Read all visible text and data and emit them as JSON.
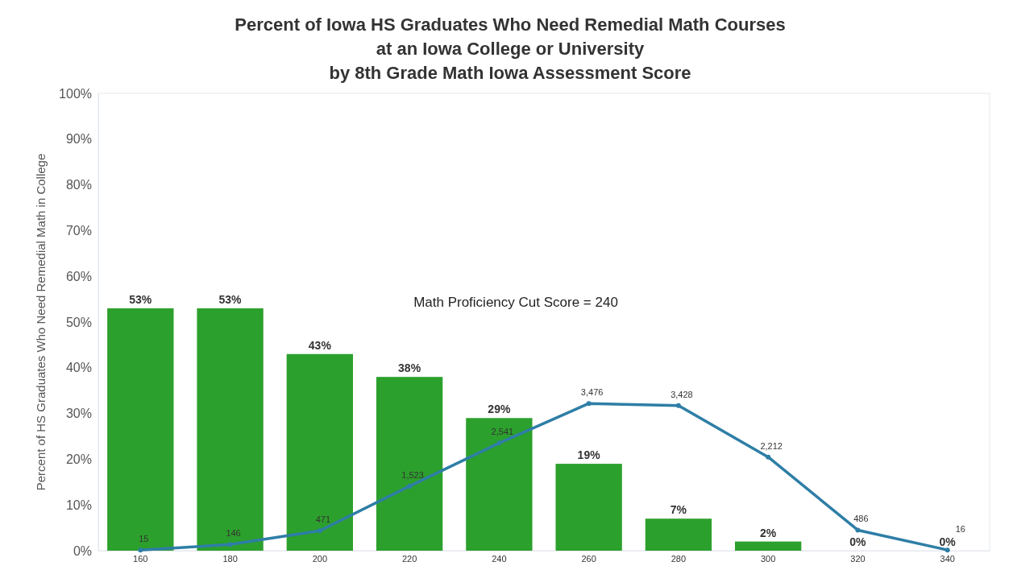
{
  "chart_data": {
    "type": "bar",
    "title": "Percent of Iowa HS Graduates Who Need Remedial Math Courses\nat an Iowa College or University\nby 8th Grade Math Iowa Assessment Score",
    "ylabel": "Percent of HS Graduates Who Need Remedial Math in College",
    "categories": [
      "160",
      "180",
      "200",
      "220",
      "240",
      "260",
      "280",
      "300",
      "320",
      "340"
    ],
    "ylim": [
      0,
      100
    ],
    "yticks": [
      {
        "value": 0,
        "label": "0%"
      },
      {
        "value": 10,
        "label": "10%"
      },
      {
        "value": 20,
        "label": "20%"
      },
      {
        "value": 30,
        "label": "30%"
      },
      {
        "value": 40,
        "label": "40%"
      },
      {
        "value": 50,
        "label": "50%"
      },
      {
        "value": 60,
        "label": "60%"
      },
      {
        "value": 70,
        "label": "70%"
      },
      {
        "value": 80,
        "label": "80%"
      },
      {
        "value": 90,
        "label": "90%"
      },
      {
        "value": 100,
        "label": "100%"
      }
    ],
    "y2lim": [
      0,
      10800
    ],
    "tick_labels": "xy",
    "grid": false,
    "series": [
      {
        "color": "#2ca02c",
        "values": [
          53,
          53,
          43,
          38,
          29,
          19,
          7,
          2,
          0,
          0
        ],
        "value_labels": [
          "53%",
          "53%",
          "43%",
          "38%",
          "29%",
          "19%",
          "7%",
          "2%",
          "0%",
          "0%"
        ]
      },
      {
        "type": "line",
        "axis": "y2",
        "color": "#2e7ea6",
        "marker": "circle",
        "values": [
          15,
          146,
          471,
          1523,
          2541,
          3476,
          3428,
          2212,
          486,
          16
        ],
        "value_labels": [
          "15",
          "146",
          "471",
          "1,523",
          "2,541",
          "3,476",
          "3,428",
          "2,212",
          "486",
          "16"
        ]
      }
    ],
    "annotations": [
      "Math Proficiency Cut Score = 240"
    ]
  }
}
